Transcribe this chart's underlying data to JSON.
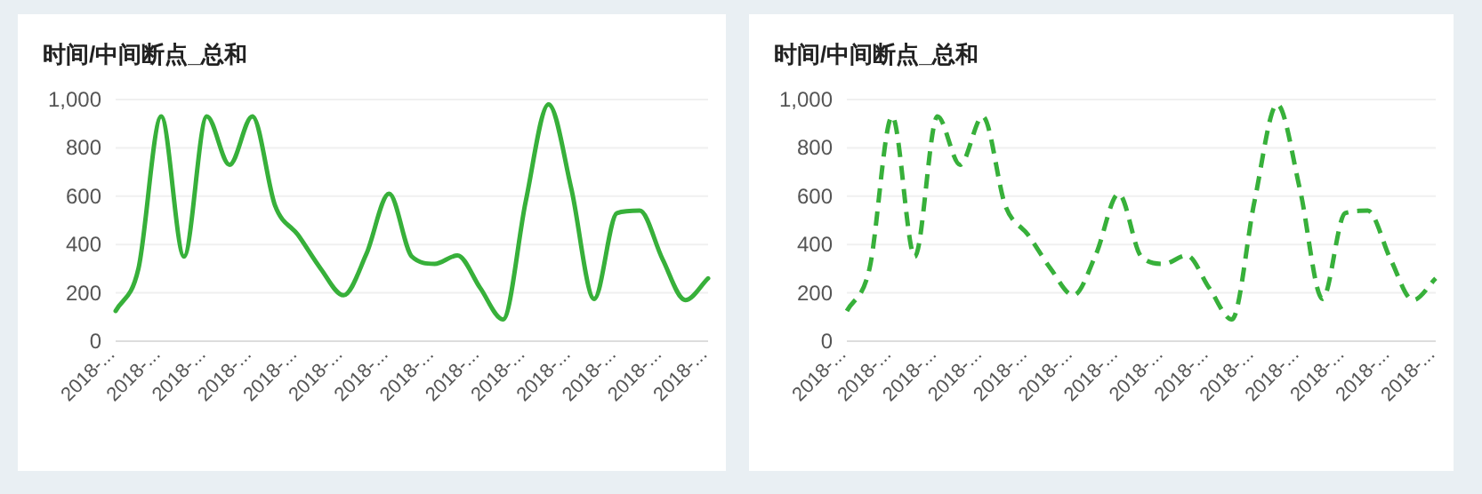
{
  "chart_data": [
    {
      "type": "line",
      "title": "时间/中间断点_总和",
      "categories": [
        "2018-...",
        null,
        "2018-...",
        null,
        "2018-...",
        null,
        "2018-...",
        null,
        "2018-...",
        null,
        "2018-...",
        null,
        "2018-...",
        null,
        "2018-...",
        null,
        "2018-...",
        null,
        "2018-...",
        null,
        "2018-...",
        null,
        "2018-...",
        null,
        "2018-...",
        null,
        "2018-..."
      ],
      "series": [
        {
          "color": "#37b03a",
          "values": [
            125,
            300,
            930,
            350,
            930,
            730,
            930,
            560,
            440,
            300,
            190,
            360,
            610,
            350,
            320,
            355,
            220,
            90,
            580,
            980,
            630,
            175,
            530,
            540,
            340,
            170,
            260
          ]
        }
      ],
      "ylim": [
        0,
        1000
      ],
      "yticks": [
        0,
        200,
        400,
        600,
        800,
        {
          "value": 1000,
          "label": "1,000"
        }
      ],
      "grid": "y",
      "line_style": "solid"
    },
    {
      "type": "line",
      "title": "时间/中间断点_总和",
      "categories": [
        "2018-...",
        null,
        "2018-...",
        null,
        "2018-...",
        null,
        "2018-...",
        null,
        "2018-...",
        null,
        "2018-...",
        null,
        "2018-...",
        null,
        "2018-...",
        null,
        "2018-...",
        null,
        "2018-...",
        null,
        "2018-...",
        null,
        "2018-...",
        null,
        "2018-...",
        null,
        "2018-..."
      ],
      "series": [
        {
          "color": "#37b03a",
          "values": [
            125,
            300,
            930,
            350,
            930,
            730,
            930,
            560,
            440,
            300,
            190,
            360,
            610,
            350,
            320,
            355,
            220,
            90,
            580,
            980,
            630,
            175,
            530,
            540,
            340,
            170,
            260
          ]
        }
      ],
      "ylim": [
        0,
        1000
      ],
      "yticks": [
        0,
        200,
        400,
        600,
        800,
        {
          "value": 1000,
          "label": "1,000"
        }
      ],
      "grid": "y",
      "line_style": "dashed"
    }
  ]
}
